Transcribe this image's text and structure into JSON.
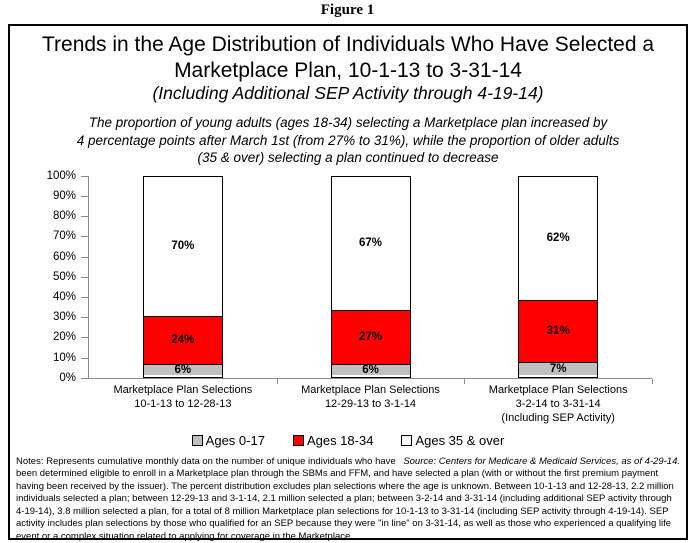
{
  "figure_label": "Figure 1",
  "title": {
    "line1": "Trends in the Age Distribution of Individuals Who Have Selected a",
    "line2": "Marketplace Plan, 10-1-13 to 3-31-14",
    "paren": "(Including Additional SEP Activity through 4-19-14)"
  },
  "subtitle": {
    "line1": "The proportion of young adults (ages 18-34) selecting a Marketplace plan increased by",
    "line2": "4 percentage points after March 1st (from 27% to 31%), while the proportion of older adults",
    "line3": "(35 & over) selecting a plan continued to decrease"
  },
  "chart_data": {
    "type": "bar",
    "stacked": true,
    "categories": [
      {
        "lines": [
          "Marketplace Plan Selections",
          "10-1-13 to 12-28-13"
        ]
      },
      {
        "lines": [
          "Marketplace Plan Selections",
          "12-29-13 to 3-1-14"
        ]
      },
      {
        "lines": [
          "Marketplace Plan Selections",
          "3-2-14 to 3-31-14",
          "(Including SEP Activity)"
        ]
      }
    ],
    "series": [
      {
        "name": "Ages 0-17",
        "color": "#c0c0c0",
        "values": [
          6,
          6,
          7
        ]
      },
      {
        "name": "Ages 18-34",
        "color": "#fe0000",
        "values": [
          24,
          27,
          31
        ]
      },
      {
        "name": "Ages 35 & over",
        "color": "#ffffff",
        "values": [
          70,
          67,
          62
        ]
      }
    ],
    "y_ticks": [
      "0%",
      "10%",
      "20%",
      "30%",
      "40%",
      "50%",
      "60%",
      "70%",
      "80%",
      "90%",
      "100%"
    ],
    "ylim": [
      0,
      100
    ],
    "grid": false,
    "legend_position": "bottom",
    "bar_label_suffix": "%",
    "axis_color": "#8a8a8a"
  },
  "notes": "Notes:  Represents cumulative monthly data on the number of unique individuals who have been determined eligible to enroll in a Marketplace plan through the SBMs and FFM, and have selected a plan (with or without the first premium payment having been received by the issuer).  The percent distribution excludes plan selections where the age is unknown.  Between 10-1-13 and 12-28-13, 2.2 million individuals selected a plan; between 12-29-13 and 3-1-14, 2.1 million selected a plan; between 3-2-14 and 3-31-14 (including additional SEP activity through 4-19-14), 3.8 million selected a plan, for a total of 8 million Marketplace plan selections for 10-1-13 to 3-31-14 (including SEP activity through 4-19-14). SEP activity includes plan selections by those who qualified for an SEP because they were \"in line\" on 3-31-14, as well as those who experienced a qualifying life event or a complex situation related to applying for coverage in the Marketplace.",
  "source": "Source:  Centers for Medicare & Medicaid Services, as of 4-29-14."
}
